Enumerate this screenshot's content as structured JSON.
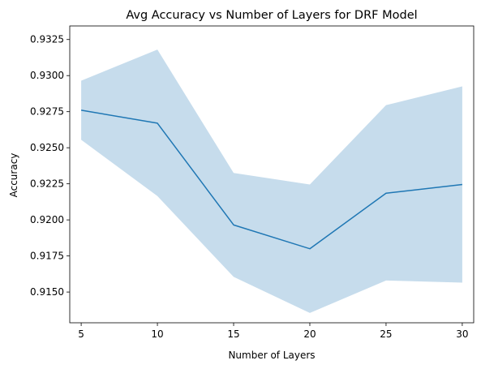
{
  "chart_data": {
    "type": "line",
    "title": "Avg Accuracy vs Number of Layers for DRF Model",
    "xlabel": "Number of Layers",
    "ylabel": "Accuracy",
    "x": [
      5,
      10,
      15,
      20,
      25,
      30
    ],
    "series": [
      {
        "values": [
          0.9276,
          0.9267,
          0.91965,
          0.918,
          0.92185,
          0.92245
        ],
        "band_lower": [
          0.92555,
          0.92165,
          0.91605,
          0.91355,
          0.9158,
          0.91565
        ],
        "band_upper": [
          0.92965,
          0.9318,
          0.92325,
          0.92245,
          0.92795,
          0.92925
        ],
        "color": "#1f77b4",
        "band_color": "#c6dcec"
      }
    ],
    "xlim": [
      4.25,
      30.75
    ],
    "ylim": [
      0.91287,
      0.93344
    ],
    "xticks": [
      5,
      10,
      15,
      20,
      25,
      30
    ],
    "xtick_labels": [
      "5",
      "10",
      "15",
      "20",
      "25",
      "30"
    ],
    "yticks": [
      0.915,
      0.9175,
      0.92,
      0.9225,
      0.925,
      0.9275,
      0.93,
      0.9325
    ],
    "ytick_labels": [
      "0.9150",
      "0.9175",
      "0.9200",
      "0.9225",
      "0.9250",
      "0.9275",
      "0.9300",
      "0.9325"
    ],
    "grid": false,
    "legend": false
  }
}
